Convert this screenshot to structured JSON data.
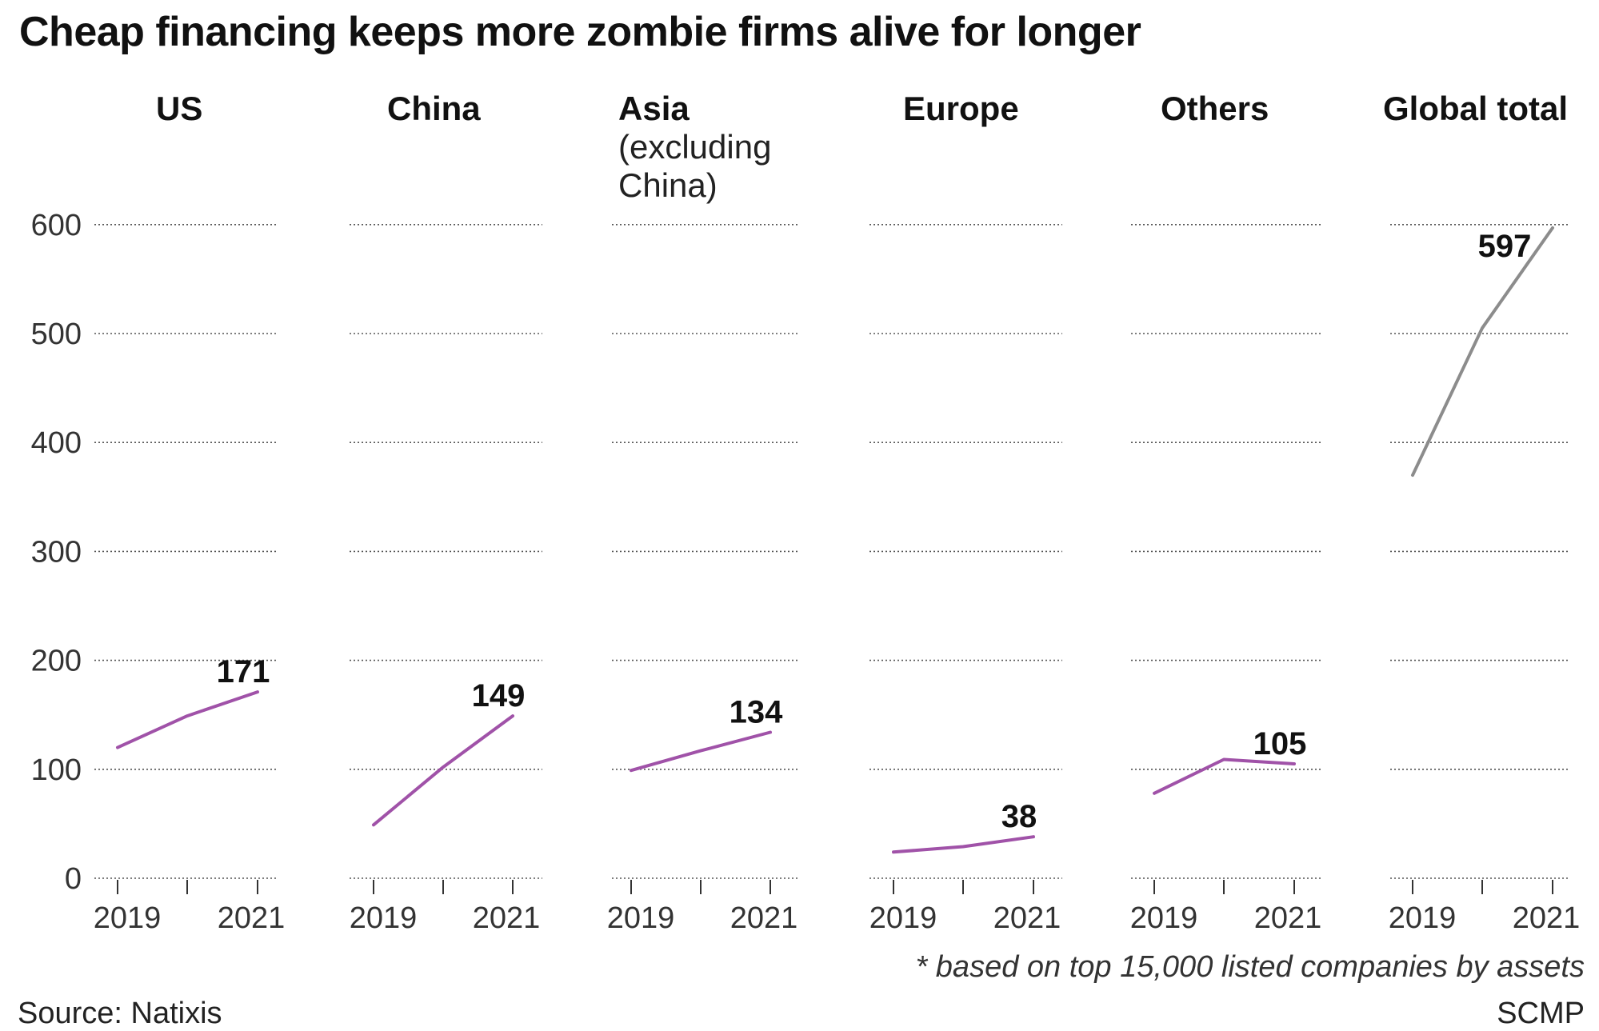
{
  "title": "Cheap financing keeps more zombie firms alive for longer",
  "footnote": "* based on top 15,000 listed companies by assets",
  "source": "Source: Natixis",
  "credit": "SCMP",
  "colors": {
    "region_line": "#a052a8",
    "total_line": "#8c8c8c",
    "grid": "#555555",
    "text": "#111111"
  },
  "chart_data": {
    "type": "line",
    "layout": "small-multiples",
    "ylim": [
      0,
      600
    ],
    "yticks": [
      0,
      100,
      200,
      300,
      400,
      500,
      600
    ],
    "x": [
      2019,
      2020,
      2021
    ],
    "x_tick_labels": [
      "2019",
      "2021"
    ],
    "grid": true,
    "series": [
      {
        "name": "US",
        "name_sub": "",
        "values": [
          120,
          149,
          171
        ],
        "end_label": "171",
        "style": "region"
      },
      {
        "name": "China",
        "name_sub": "",
        "values": [
          49,
          102,
          149
        ],
        "end_label": "149",
        "style": "region"
      },
      {
        "name": "Asia",
        "name_sub": "(excluding China)",
        "name_sub_lines": [
          "(excluding",
          "China)"
        ],
        "values": [
          99,
          117,
          134
        ],
        "end_label": "134",
        "style": "region"
      },
      {
        "name": "Europe",
        "name_sub": "",
        "values": [
          24,
          29,
          38
        ],
        "end_label": "38",
        "style": "region"
      },
      {
        "name": "Others",
        "name_sub": "",
        "values": [
          78,
          109,
          105
        ],
        "end_label": "105",
        "style": "region"
      },
      {
        "name": "Global total",
        "name_sub": "",
        "values": [
          370,
          505,
          597
        ],
        "end_label": "597",
        "style": "total"
      }
    ]
  }
}
